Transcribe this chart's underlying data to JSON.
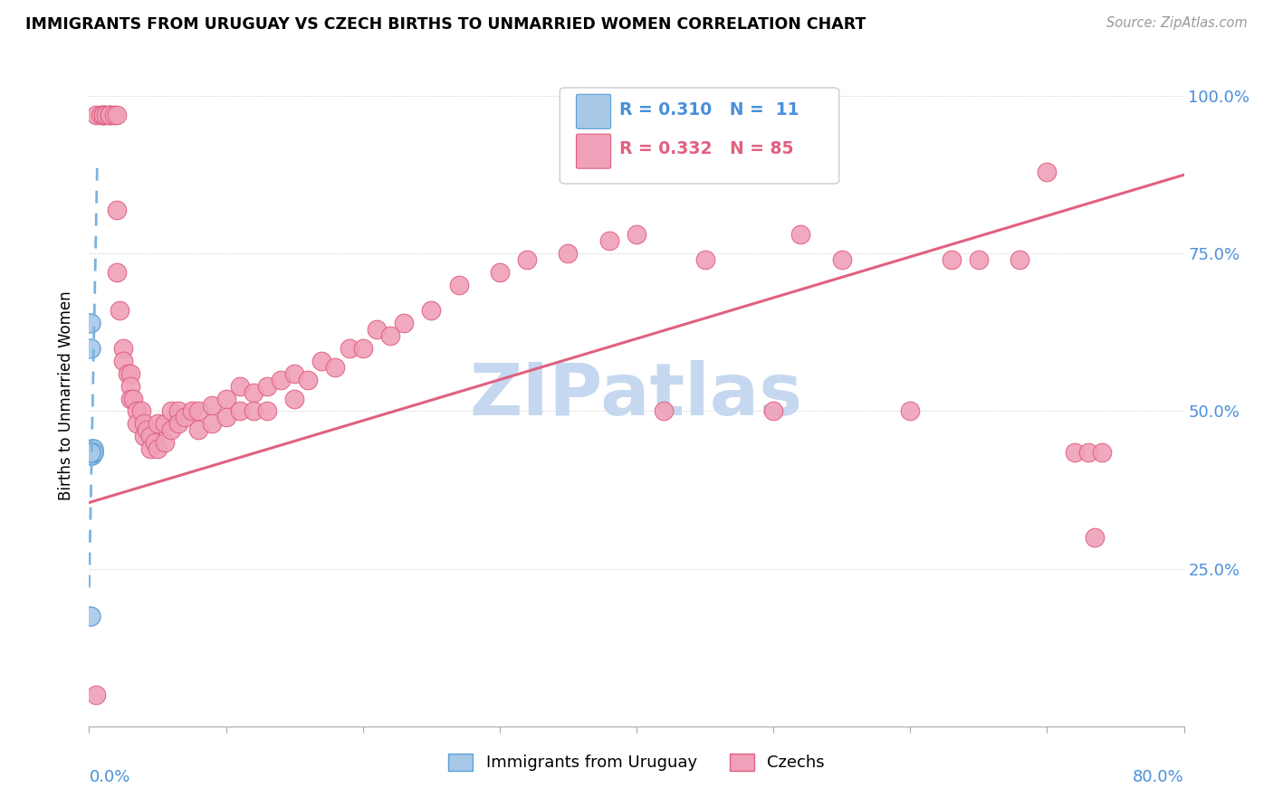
{
  "title": "IMMIGRANTS FROM URUGUAY VS CZECH BIRTHS TO UNMARRIED WOMEN CORRELATION CHART",
  "source": "Source: ZipAtlas.com",
  "ylabel": "Births to Unmarried Women",
  "legend_label1": "Immigrants from Uruguay",
  "legend_label2": "Czechs",
  "color_blue_fill": "#a8c8e8",
  "color_blue_edge": "#5a9fd4",
  "color_pink_fill": "#f0a0b8",
  "color_pink_edge": "#e06080",
  "color_line_blue": "#7ab3e0",
  "color_line_pink": "#e06080",
  "color_grid": "#cccccc",
  "color_ytick": "#4a90d9",
  "color_xtick": "#4a90d9",
  "xlim": [
    0.0,
    0.8
  ],
  "ylim": [
    0.0,
    1.05
  ],
  "blue_x": [
    0.001,
    0.001,
    0.001,
    0.002,
    0.002,
    0.002,
    0.002,
    0.003,
    0.003,
    0.003,
    0.001
  ],
  "blue_y": [
    0.64,
    0.6,
    0.175,
    0.44,
    0.435,
    0.43,
    0.43,
    0.435,
    0.44,
    0.435,
    0.435
  ],
  "pink_x": [
    0.005,
    0.008,
    0.01,
    0.01,
    0.01,
    0.012,
    0.015,
    0.015,
    0.015,
    0.018,
    0.02,
    0.02,
    0.02,
    0.022,
    0.025,
    0.025,
    0.028,
    0.03,
    0.03,
    0.03,
    0.032,
    0.035,
    0.035,
    0.038,
    0.04,
    0.04,
    0.042,
    0.045,
    0.045,
    0.048,
    0.05,
    0.05,
    0.055,
    0.055,
    0.06,
    0.06,
    0.065,
    0.065,
    0.07,
    0.075,
    0.08,
    0.08,
    0.09,
    0.09,
    0.1,
    0.1,
    0.11,
    0.11,
    0.12,
    0.12,
    0.13,
    0.13,
    0.14,
    0.15,
    0.15,
    0.16,
    0.17,
    0.18,
    0.19,
    0.2,
    0.21,
    0.22,
    0.23,
    0.25,
    0.27,
    0.3,
    0.32,
    0.35,
    0.38,
    0.4,
    0.42,
    0.45,
    0.5,
    0.52,
    0.55,
    0.6,
    0.63,
    0.65,
    0.68,
    0.7,
    0.72,
    0.73,
    0.74,
    0.735,
    0.005
  ],
  "pink_y": [
    0.97,
    0.97,
    0.97,
    0.97,
    0.97,
    0.97,
    0.97,
    0.97,
    0.97,
    0.97,
    0.97,
    0.82,
    0.72,
    0.66,
    0.6,
    0.58,
    0.56,
    0.56,
    0.54,
    0.52,
    0.52,
    0.5,
    0.48,
    0.5,
    0.48,
    0.46,
    0.47,
    0.46,
    0.44,
    0.45,
    0.48,
    0.44,
    0.48,
    0.45,
    0.5,
    0.47,
    0.5,
    0.48,
    0.49,
    0.5,
    0.5,
    0.47,
    0.51,
    0.48,
    0.52,
    0.49,
    0.54,
    0.5,
    0.53,
    0.5,
    0.54,
    0.5,
    0.55,
    0.56,
    0.52,
    0.55,
    0.58,
    0.57,
    0.6,
    0.6,
    0.63,
    0.62,
    0.64,
    0.66,
    0.7,
    0.72,
    0.74,
    0.75,
    0.77,
    0.78,
    0.5,
    0.74,
    0.5,
    0.78,
    0.74,
    0.5,
    0.74,
    0.74,
    0.74,
    0.88,
    0.435,
    0.435,
    0.435,
    0.3,
    0.05
  ],
  "pink_trend_x0": 0.0,
  "pink_trend_y0": 0.355,
  "pink_trend_x1": 0.8,
  "pink_trend_y1": 0.875,
  "blue_trend_x0": 0.0,
  "blue_trend_y0": 0.22,
  "blue_trend_x1": 0.006,
  "blue_trend_y1": 0.9,
  "watermark_text": "ZIPatlas",
  "watermark_color": "#c5d8f0",
  "ytick_vals": [
    0.25,
    0.5,
    0.75,
    1.0
  ],
  "ytick_labels": [
    "25.0%",
    "50.0%",
    "75.0%",
    "100.0%"
  ],
  "xtick_left_label": "0.0%",
  "xtick_right_label": "80.0%"
}
